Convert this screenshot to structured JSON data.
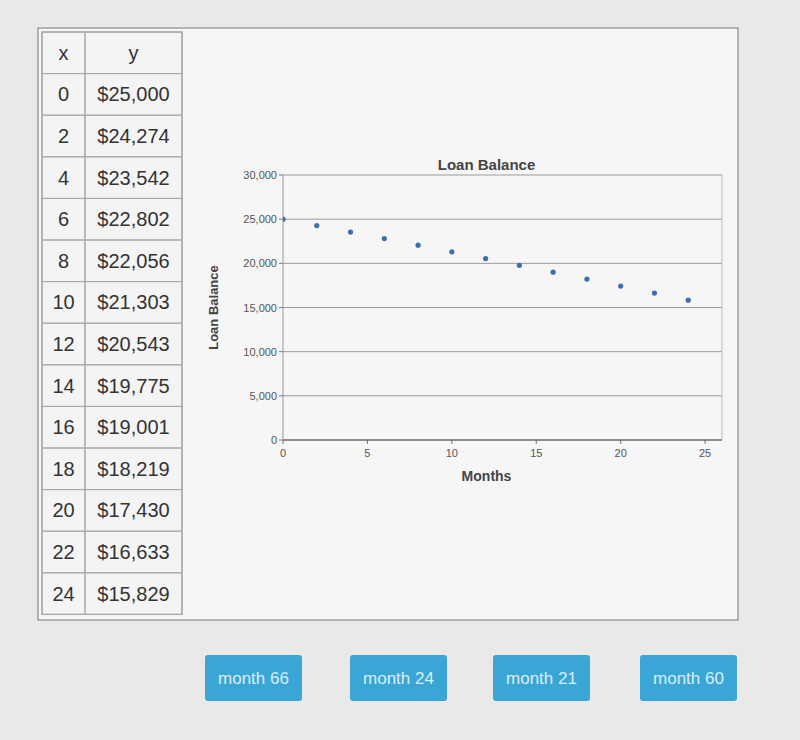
{
  "chart_data": {
    "type": "scatter",
    "title": "Loan Balance",
    "x_label": "Months",
    "y_label": "Loan Balance",
    "x": [
      0,
      2,
      4,
      6,
      8,
      10,
      12,
      14,
      16,
      18,
      20,
      22,
      24
    ],
    "values": [
      25000,
      24274,
      23542,
      22802,
      22056,
      21303,
      20543,
      19775,
      19001,
      18219,
      17430,
      16633,
      15829
    ],
    "color": "#3c6fb0",
    "marker": "circle",
    "xlim": [
      0,
      26
    ],
    "xticks": [
      0,
      5,
      10,
      15,
      20,
      25
    ],
    "ylim": [
      0,
      30000
    ],
    "yticks": [
      0,
      {
        "value": 5000,
        "label": "5,000"
      },
      {
        "value": 10000,
        "label": "10,000"
      },
      {
        "value": 15000,
        "label": "15,000"
      },
      {
        "value": 20000,
        "label": "20,000"
      },
      {
        "value": 25000,
        "label": "25,000"
      },
      {
        "value": 30000,
        "label": "30,000"
      }
    ],
    "grid": true
  },
  "table": {
    "header": [
      "x",
      "y"
    ],
    "rows": [
      [
        0,
        "$25,000"
      ],
      [
        2,
        "$24,274"
      ],
      [
        4,
        "$23,542"
      ],
      [
        6,
        "$22,802"
      ],
      [
        8,
        "$22,056"
      ],
      [
        10,
        "$21,303"
      ],
      [
        12,
        "$20,543"
      ],
      [
        14,
        "$19,775"
      ],
      [
        16,
        "$19,001"
      ],
      [
        18,
        "$18,219"
      ],
      [
        20,
        "$17,430"
      ],
      [
        22,
        "$16,633"
      ],
      [
        24,
        "$15,829"
      ]
    ]
  },
  "buttons": [
    "month 66",
    "month 24",
    "month 21",
    "month 60"
  ]
}
